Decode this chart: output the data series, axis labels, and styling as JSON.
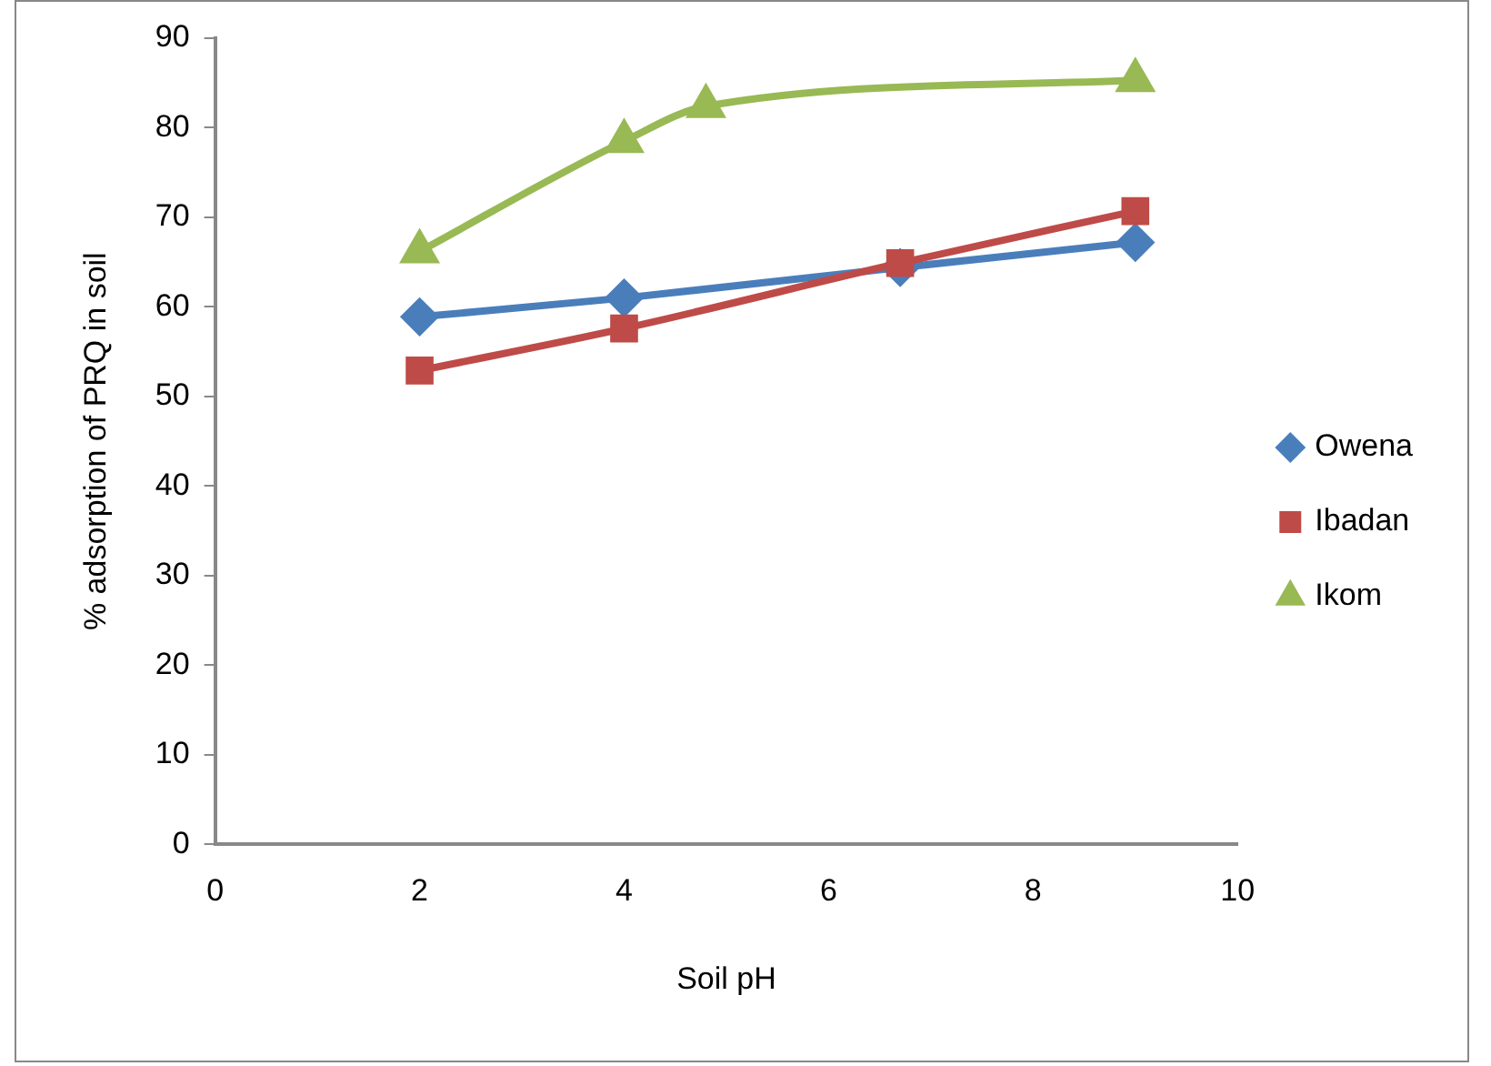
{
  "chart_data": {
    "type": "line",
    "xlabel": "Soil pH",
    "ylabel": "% adsorption of PRQ in soil",
    "xlim": [
      0,
      10
    ],
    "xticks": [
      0,
      2,
      4,
      6,
      8,
      10
    ],
    "ylim": [
      0,
      90
    ],
    "yticks": [
      0,
      10,
      20,
      30,
      40,
      50,
      60,
      70,
      80,
      90
    ],
    "grid": false,
    "legend": "right",
    "series": [
      {
        "name": "Owena",
        "color": "#4a7ebb",
        "marker": "diamond",
        "x": [
          2,
          4,
          6.7,
          9
        ],
        "values": [
          58.9,
          61,
          64.4,
          67.2
        ]
      },
      {
        "name": "Ibadan",
        "color": "#be4b48",
        "marker": "square",
        "x": [
          2,
          4,
          6.7,
          9
        ],
        "values": [
          52.9,
          57.6,
          64.9,
          70.7
        ]
      },
      {
        "name": "Ikom",
        "color": "#98b954",
        "marker": "triangle",
        "x": [
          2,
          4,
          4.8,
          9
        ],
        "values": [
          66.2,
          78.5,
          82.4,
          85.3
        ]
      }
    ]
  }
}
